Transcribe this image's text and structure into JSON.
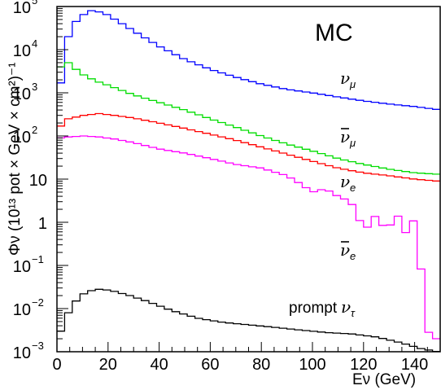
{
  "chart_data": {
    "type": "line",
    "title": "MC",
    "xlabel": "Eν (GeV)",
    "ylabel": "Φν (10¹³ pot × GeV × cm²)⁻¹",
    "xlim": [
      0,
      150
    ],
    "ylim": [
      0.001,
      100000
    ],
    "yscale": "log",
    "grid": false,
    "x_ticks": [
      0,
      20,
      40,
      60,
      80,
      100,
      120,
      140
    ],
    "y_ticks": [
      {
        "value": 0.001,
        "base": "10",
        "exp": "−3"
      },
      {
        "value": 0.01,
        "base": "10",
        "exp": "−2"
      },
      {
        "value": 0.1,
        "base": "10",
        "exp": "−1"
      },
      {
        "value": 1,
        "base": "1",
        "exp": ""
      },
      {
        "value": 10,
        "base": "10",
        "exp": ""
      },
      {
        "value": 100,
        "base": "10",
        "exp": "2"
      },
      {
        "value": 1000,
        "base": "10",
        "exp": "3"
      },
      {
        "value": 10000,
        "base": "10",
        "exp": "4"
      },
      {
        "value": 100000,
        "base": "10",
        "exp": "5"
      }
    ],
    "bin_width": 3,
    "series": [
      {
        "name": "νμ",
        "label_main": "ν",
        "label_sub": "μ",
        "bar": false,
        "color": "#0000ff",
        "knots": [
          [
            0,
            1200
          ],
          [
            1.5,
            1700
          ],
          [
            4.5,
            20000
          ],
          [
            7.5,
            45000
          ],
          [
            10.5,
            65000
          ],
          [
            13.5,
            80000
          ],
          [
            16.5,
            75000
          ],
          [
            19.5,
            65000
          ],
          [
            25.5,
            40000
          ],
          [
            31.5,
            24000
          ],
          [
            40,
            12000
          ],
          [
            50,
            6000
          ],
          [
            60,
            3500
          ],
          [
            70,
            2300
          ],
          [
            80,
            1600
          ],
          [
            90,
            1200
          ],
          [
            100,
            1000
          ],
          [
            110,
            800
          ],
          [
            120,
            650
          ],
          [
            130,
            550
          ],
          [
            140,
            480
          ],
          [
            149,
            410
          ]
        ]
      },
      {
        "name": "ν̄μ",
        "label_main": "ν",
        "label_sub": "μ",
        "bar": true,
        "color": "#00dd00",
        "knots": [
          [
            0,
            1800
          ],
          [
            1.5,
            4000
          ],
          [
            4.5,
            5000
          ],
          [
            7.5,
            3500
          ],
          [
            10.5,
            2600
          ],
          [
            15,
            1900
          ],
          [
            20,
            1500
          ],
          [
            30,
            900
          ],
          [
            40,
            600
          ],
          [
            50,
            400
          ],
          [
            60,
            250
          ],
          [
            70,
            160
          ],
          [
            80,
            100
          ],
          [
            90,
            65
          ],
          [
            100,
            45
          ],
          [
            110,
            30
          ],
          [
            120,
            22
          ],
          [
            130,
            17
          ],
          [
            140,
            14
          ],
          [
            149,
            13
          ]
        ]
      },
      {
        "name": "νe",
        "label_main": "ν",
        "label_sub": "e",
        "bar": false,
        "color": "#ff0000",
        "knots": [
          [
            0,
            120
          ],
          [
            1.5,
            170
          ],
          [
            4.5,
            250
          ],
          [
            10.5,
            300
          ],
          [
            16.5,
            330
          ],
          [
            22.5,
            300
          ],
          [
            30,
            260
          ],
          [
            40,
            200
          ],
          [
            50,
            150
          ],
          [
            60,
            110
          ],
          [
            70,
            80
          ],
          [
            80,
            55
          ],
          [
            90,
            38
          ],
          [
            100,
            26
          ],
          [
            110,
            18
          ],
          [
            120,
            14
          ],
          [
            130,
            12
          ],
          [
            140,
            10
          ],
          [
            149,
            9
          ]
        ]
      },
      {
        "name": "ν̄e",
        "label_main": "ν",
        "label_sub": "e",
        "bar": true,
        "color": "#ff00ff",
        "knots": [
          [
            0,
            80
          ],
          [
            1.5,
            90
          ],
          [
            4.5,
            95
          ],
          [
            10.5,
            100
          ],
          [
            16.5,
            95
          ],
          [
            22.5,
            85
          ],
          [
            30,
            70
          ],
          [
            40,
            50
          ],
          [
            50,
            40
          ],
          [
            60,
            30
          ],
          [
            70,
            22
          ],
          [
            80,
            18
          ],
          [
            90,
            12
          ],
          [
            95,
            8
          ],
          [
            100,
            5
          ],
          [
            105,
            6
          ],
          [
            110,
            4
          ],
          [
            115,
            3
          ],
          [
            118,
            1.2
          ],
          [
            121,
            0.7
          ],
          [
            125,
            1.5
          ],
          [
            129,
            0.6
          ],
          [
            133,
            1.6
          ],
          [
            137,
            0.5
          ],
          [
            141,
            1.7
          ],
          [
            144,
            0.004
          ],
          [
            147,
            0.002
          ],
          [
            149,
            0.002
          ]
        ]
      },
      {
        "name": "prompt ντ",
        "label_main": "ν",
        "label_sub": "τ",
        "prefix": "prompt ",
        "bar": false,
        "color": "#000000",
        "knots": [
          [
            0,
            0.002
          ],
          [
            1.5,
            0.003
          ],
          [
            4.5,
            0.008
          ],
          [
            7.5,
            0.015
          ],
          [
            10.5,
            0.022
          ],
          [
            13.5,
            0.026
          ],
          [
            16.5,
            0.028
          ],
          [
            19.5,
            0.027
          ],
          [
            22.5,
            0.025
          ],
          [
            28.5,
            0.02
          ],
          [
            35,
            0.015
          ],
          [
            45,
            0.009
          ],
          [
            55,
            0.006
          ],
          [
            65,
            0.0048
          ],
          [
            75,
            0.0042
          ],
          [
            85,
            0.0037
          ],
          [
            95,
            0.0032
          ],
          [
            105,
            0.0028
          ],
          [
            115,
            0.0026
          ],
          [
            125,
            0.0022
          ],
          [
            135,
            0.0016
          ],
          [
            142,
            0.0012
          ],
          [
            149,
            0.001
          ]
        ]
      }
    ]
  }
}
